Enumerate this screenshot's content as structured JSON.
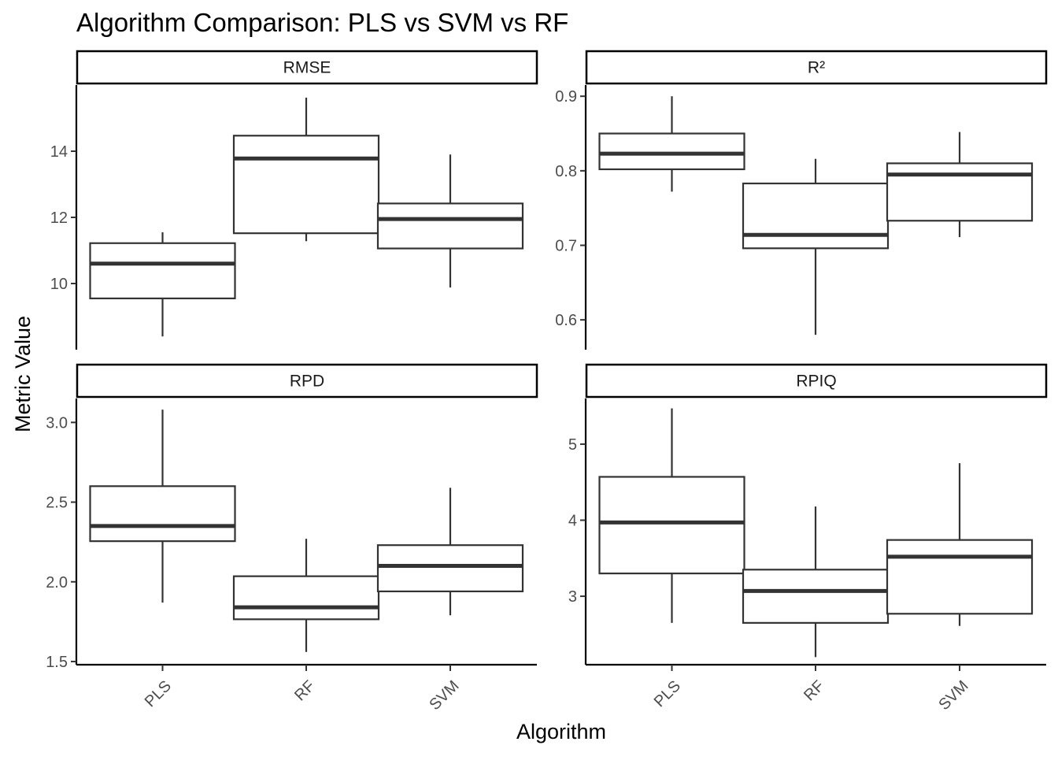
{
  "chart_data": {
    "type": "boxplot",
    "title": "Algorithm Comparison: PLS vs SVM vs RF",
    "xlabel": "Algorithm",
    "ylabel": "Metric Value",
    "categories": [
      "PLS",
      "RF",
      "SVM"
    ],
    "grid": false,
    "facets": [
      {
        "label": "RMSE",
        "ylim": [
          8.0,
          16.0
        ],
        "yticks": [
          10,
          12,
          14
        ],
        "boxes": [
          {
            "category": "PLS",
            "min": 8.4,
            "q1": 9.55,
            "median": 10.6,
            "q3": 11.22,
            "max": 11.55
          },
          {
            "category": "RF",
            "min": 11.28,
            "q1": 11.52,
            "median": 13.78,
            "q3": 14.47,
            "max": 15.62
          },
          {
            "category": "SVM",
            "min": 9.88,
            "q1": 11.06,
            "median": 11.95,
            "q3": 12.42,
            "max": 13.9
          }
        ]
      },
      {
        "label": "R²",
        "ylim": [
          0.56,
          0.915
        ],
        "yticks": [
          0.6,
          0.7,
          0.8,
          0.9
        ],
        "boxes": [
          {
            "category": "PLS",
            "min": 0.772,
            "q1": 0.802,
            "median": 0.823,
            "q3": 0.85,
            "max": 0.9
          },
          {
            "category": "RF",
            "min": 0.58,
            "q1": 0.696,
            "median": 0.714,
            "q3": 0.783,
            "max": 0.816
          },
          {
            "category": "SVM",
            "min": 0.711,
            "q1": 0.733,
            "median": 0.795,
            "q3": 0.81,
            "max": 0.852
          }
        ]
      },
      {
        "label": "RPD",
        "ylim": [
          1.48,
          3.15
        ],
        "yticks": [
          1.5,
          2.0,
          2.5,
          3.0
        ],
        "ytick_labels": [
          "1.5",
          "2.0",
          "2.5",
          "3.0"
        ],
        "boxes": [
          {
            "category": "PLS",
            "min": 1.87,
            "q1": 2.255,
            "median": 2.35,
            "q3": 2.6,
            "max": 3.08
          },
          {
            "category": "RF",
            "min": 1.56,
            "q1": 1.765,
            "median": 1.84,
            "q3": 2.035,
            "max": 2.27
          },
          {
            "category": "SVM",
            "min": 1.79,
            "q1": 1.94,
            "median": 2.1,
            "q3": 2.23,
            "max": 2.59
          }
        ]
      },
      {
        "label": "RPIQ",
        "ylim": [
          2.1,
          5.6
        ],
        "yticks": [
          3,
          4,
          5
        ],
        "boxes": [
          {
            "category": "PLS",
            "min": 2.65,
            "q1": 3.3,
            "median": 3.97,
            "q3": 4.57,
            "max": 5.47
          },
          {
            "category": "RF",
            "min": 2.2,
            "q1": 2.65,
            "median": 3.07,
            "q3": 3.35,
            "max": 4.18
          },
          {
            "category": "SVM",
            "min": 2.61,
            "q1": 2.77,
            "median": 3.52,
            "q3": 3.74,
            "max": 4.75
          }
        ]
      }
    ]
  }
}
